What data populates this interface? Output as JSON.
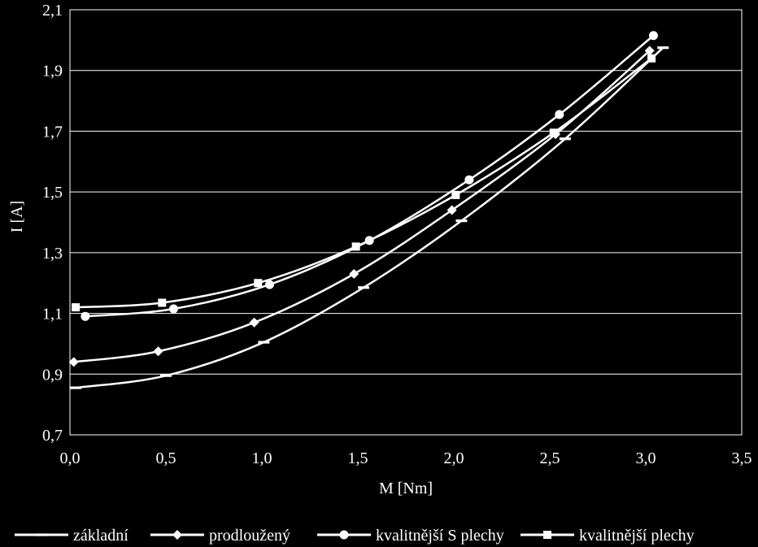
{
  "chart_data": {
    "type": "line",
    "xlabel": "M [Nm]",
    "ylabel": "I [A]",
    "xlim": [
      0,
      3.5
    ],
    "ylim": [
      0.7,
      2.1
    ],
    "x_ticks": [
      0,
      0.5,
      1.0,
      1.5,
      2.0,
      2.5,
      3.0,
      3.5
    ],
    "x_tick_labels": [
      "0,0",
      "0,5",
      "1,0",
      "1,5",
      "2,0",
      "2,5",
      "3,0",
      "3,5"
    ],
    "y_ticks": [
      0.7,
      0.9,
      1.1,
      1.3,
      1.5,
      1.7,
      1.9,
      2.1
    ],
    "y_tick_labels": [
      "0,7",
      "0,9",
      "1,1",
      "1,3",
      "1,5",
      "1,7",
      "1,9",
      "2,1"
    ],
    "grid": "horizontal",
    "legend_position": "bottom",
    "colors": {
      "background": "#000000",
      "foreground": "#ffffff"
    },
    "series": [
      {
        "name": "základní",
        "marker": "dash",
        "x": [
          0.03,
          0.5,
          1.01,
          1.53,
          2.04,
          2.58,
          3.09
        ],
        "y": [
          0.855,
          0.895,
          1.005,
          1.185,
          1.405,
          1.675,
          1.975
        ]
      },
      {
        "name": "prodloužený",
        "marker": "diamond",
        "x": [
          0.02,
          0.46,
          0.96,
          1.48,
          1.99,
          2.53,
          3.02
        ],
        "y": [
          0.94,
          0.975,
          1.07,
          1.23,
          1.44,
          1.69,
          1.965
        ]
      },
      {
        "name": "kvalitnější S plechy",
        "marker": "circle",
        "x": [
          0.08,
          0.54,
          1.04,
          1.56,
          2.08,
          2.55,
          3.04
        ],
        "y": [
          1.09,
          1.115,
          1.195,
          1.34,
          1.54,
          1.755,
          2.015
        ]
      },
      {
        "name": "kvalitnější plechy",
        "marker": "square",
        "x": [
          0.03,
          0.48,
          0.98,
          1.49,
          2.01,
          2.52,
          3.03
        ],
        "y": [
          1.12,
          1.135,
          1.2,
          1.32,
          1.49,
          1.695,
          1.94
        ]
      }
    ]
  }
}
